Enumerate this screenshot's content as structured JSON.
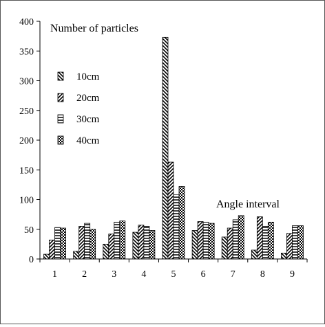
{
  "chart_data": {
    "type": "bar",
    "title": "",
    "ylabel": "Number of particles",
    "xlabel": "Angle interval",
    "categories": [
      "1",
      "2",
      "3",
      "4",
      "5",
      "6",
      "7",
      "8",
      "9"
    ],
    "ylim": [
      0,
      400
    ],
    "yticks": [
      0,
      50,
      100,
      150,
      200,
      250,
      300,
      350,
      400
    ],
    "grid": false,
    "legend_position": "left",
    "series": [
      {
        "name": "10cm",
        "pattern": "hatch-backslash",
        "values": [
          8,
          13,
          25,
          45,
          373,
          48,
          37,
          15,
          10
        ]
      },
      {
        "name": "20cm",
        "pattern": "hatch-slash",
        "values": [
          32,
          55,
          42,
          57,
          163,
          63,
          52,
          71,
          43
        ]
      },
      {
        "name": "30cm",
        "pattern": "horizontal-lines",
        "values": [
          53,
          60,
          62,
          55,
          108,
          62,
          66,
          55,
          56
        ]
      },
      {
        "name": "40cm",
        "pattern": "checker",
        "values": [
          52,
          50,
          64,
          48,
          122,
          60,
          73,
          62,
          56
        ]
      }
    ]
  }
}
